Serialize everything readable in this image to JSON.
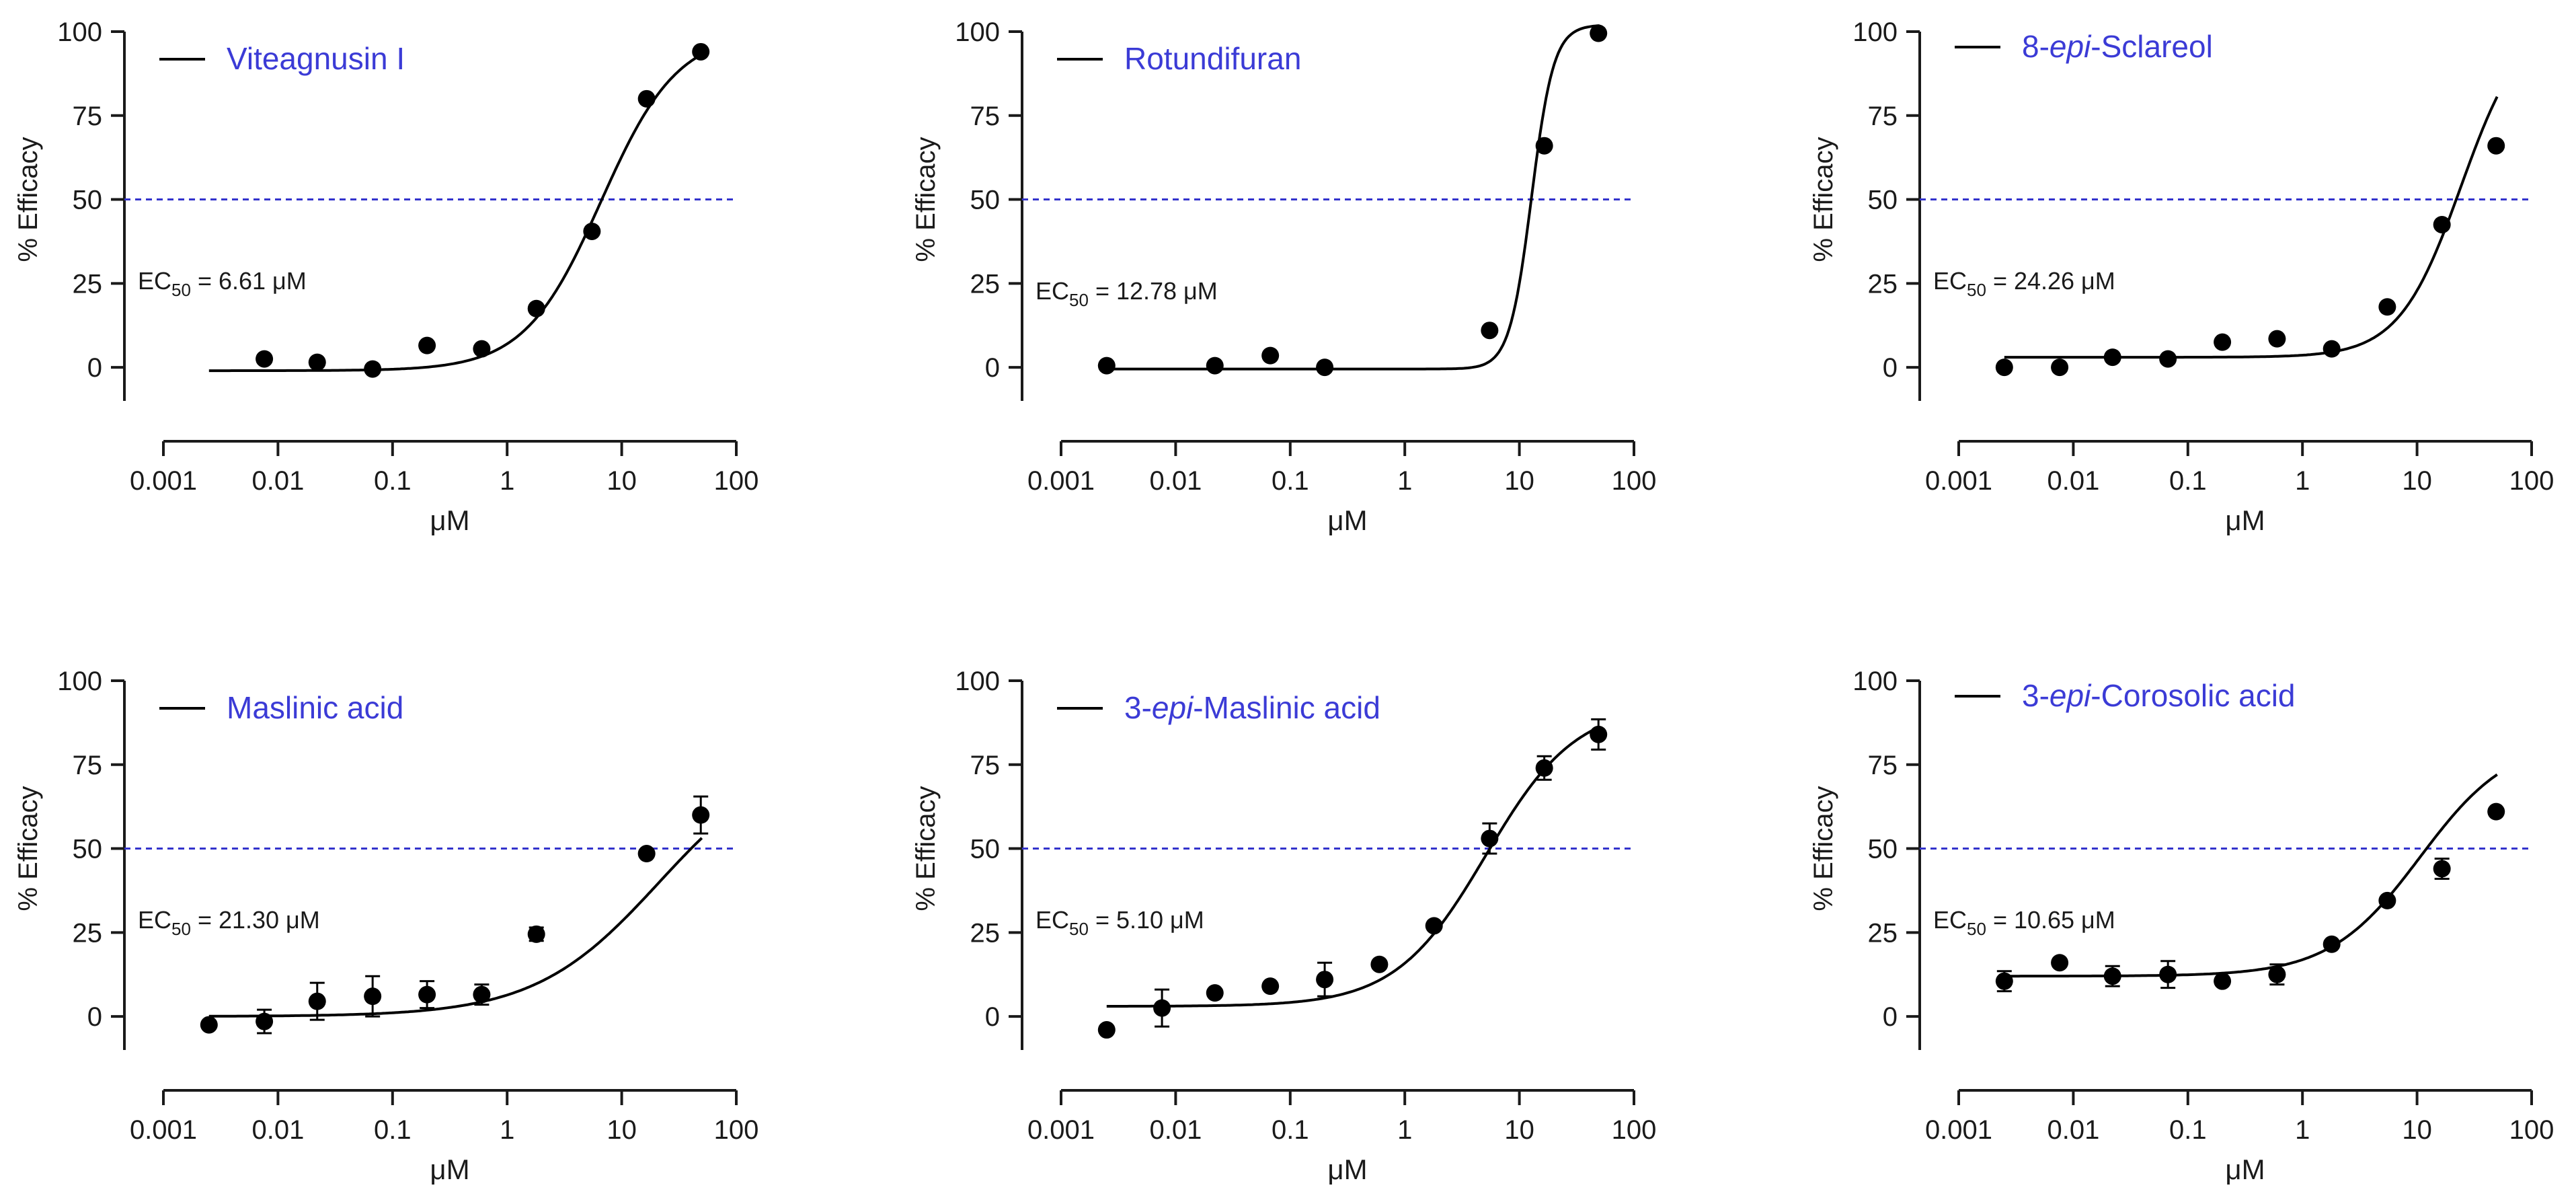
{
  "chart_data": [
    {
      "type": "scatter",
      "title": "Viteagnusin I",
      "title_parts": [
        {
          "text": "Viteagnusin I",
          "italic": false
        }
      ],
      "xlabel": "μM",
      "ylabel": "% Efficacy",
      "xscale": "log",
      "xlim": [
        0.001,
        100
      ],
      "ylim": [
        -10,
        100
      ],
      "xticks": [
        0.001,
        0.01,
        0.1,
        1,
        10,
        100
      ],
      "xtick_labels": [
        "0.001",
        "0.01",
        "0.1",
        "1",
        "10",
        "100"
      ],
      "yticks": [
        0,
        25,
        50,
        75,
        100
      ],
      "ytick_labels": [
        "0",
        "25",
        "50",
        "75",
        "100"
      ],
      "reference_line": {
        "y": 50,
        "style": "dashed",
        "color": "#3333cc"
      },
      "ec50_label": {
        "prefix": "EC",
        "sub": "50",
        "suffix": " = 6.61 μM"
      },
      "ec50": 6.61,
      "fit": {
        "bottom": -1,
        "top": 100,
        "hill": 1.3,
        "x_range": [
          0.0025,
          50
        ]
      },
      "points": {
        "x": [
          0.0076,
          0.022,
          0.067,
          0.2,
          0.6,
          1.8,
          5.5,
          16.5,
          49
        ],
        "y": [
          2.5,
          1.5,
          -0.5,
          6.5,
          5.5,
          17.5,
          40.5,
          80,
          94
        ],
        "err": [
          0,
          0,
          0,
          0,
          0,
          0,
          0,
          0,
          0
        ]
      },
      "legend": "top-left"
    },
    {
      "type": "scatter",
      "title": "Rotundifuran",
      "title_parts": [
        {
          "text": "Rotundifuran",
          "italic": false
        }
      ],
      "xlabel": "μM",
      "ylabel": "% Efficacy",
      "xscale": "log",
      "xlim": [
        0.001,
        100
      ],
      "ylim": [
        -10,
        100
      ],
      "xticks": [
        0.001,
        0.01,
        0.1,
        1,
        10,
        100
      ],
      "xtick_labels": [
        "0.001",
        "0.01",
        "0.1",
        "1",
        "10",
        "100"
      ],
      "yticks": [
        0,
        25,
        50,
        75,
        100
      ],
      "ytick_labels": [
        "0",
        "25",
        "50",
        "75",
        "100"
      ],
      "reference_line": {
        "y": 50,
        "style": "dashed",
        "color": "#3333cc"
      },
      "ec50_label": {
        "prefix": "EC",
        "sub": "50",
        "suffix": " = 12.78 μM"
      },
      "ec50": 12.78,
      "fit": {
        "bottom": -0.5,
        "top": 102,
        "hill": 4.5,
        "x_range": [
          0.0025,
          50
        ]
      },
      "points": {
        "x": [
          0.0025,
          0.022,
          0.067,
          0.2,
          5.5,
          16.5,
          49
        ],
        "y": [
          0.5,
          0.5,
          3.5,
          0,
          11,
          66,
          99.5
        ],
        "err": [
          0,
          0,
          0,
          0,
          0,
          0,
          0
        ]
      },
      "legend": "top-left"
    },
    {
      "type": "scatter",
      "title": "8-epi-Sclareol",
      "title_parts": [
        {
          "text": "8-",
          "italic": false
        },
        {
          "text": "epi",
          "italic": true
        },
        {
          "text": "-Sclareol",
          "italic": false
        }
      ],
      "xlabel": "μM",
      "ylabel": "% Efficacy",
      "xscale": "log",
      "xlim": [
        0.001,
        100
      ],
      "ylim": [
        -10,
        100
      ],
      "xticks": [
        0.001,
        0.01,
        0.1,
        1,
        10,
        100
      ],
      "xtick_labels": [
        "0.001",
        "0.01",
        "0.1",
        "1",
        "10",
        "100"
      ],
      "yticks": [
        0,
        25,
        50,
        75,
        100
      ],
      "ytick_labels": [
        "0",
        "25",
        "50",
        "75",
        "100"
      ],
      "reference_line": {
        "y": 50,
        "style": "dashed",
        "color": "#3333cc"
      },
      "ec50_label": {
        "prefix": "EC",
        "sub": "50",
        "suffix": " = 24.26 μM"
      },
      "ec50": 24.26,
      "fit": {
        "bottom": 3,
        "top": 105,
        "hill": 1.6,
        "x_range": [
          0.0025,
          50
        ]
      },
      "points": {
        "x": [
          0.0025,
          0.0076,
          0.022,
          0.067,
          0.2,
          0.6,
          1.8,
          5.5,
          16.5,
          49
        ],
        "y": [
          0,
          0,
          3,
          2.5,
          7.5,
          8.5,
          5.5,
          18,
          42.5,
          66
        ],
        "err": [
          0,
          0,
          0,
          0,
          0,
          0,
          0,
          0,
          0,
          0
        ]
      },
      "legend": "top-left"
    },
    {
      "type": "scatter",
      "title": "Maslinic acid",
      "title_parts": [
        {
          "text": "Maslinic acid",
          "italic": false
        }
      ],
      "xlabel": "μM",
      "ylabel": "% Efficacy",
      "xscale": "log",
      "xlim": [
        0.001,
        100
      ],
      "ylim": [
        -10,
        100
      ],
      "xticks": [
        0.001,
        0.01,
        0.1,
        1,
        10,
        100
      ],
      "xtick_labels": [
        "0.001",
        "0.01",
        "0.1",
        "1",
        "10",
        "100"
      ],
      "yticks": [
        0,
        25,
        50,
        75,
        100
      ],
      "ytick_labels": [
        "0",
        "25",
        "50",
        "75",
        "100"
      ],
      "reference_line": {
        "y": 50,
        "style": "dashed",
        "color": "#3333cc"
      },
      "ec50_label": {
        "prefix": "EC",
        "sub": "50",
        "suffix": " = 21.30 μM"
      },
      "ec50": 21.3,
      "fit": {
        "bottom": 0,
        "top": 80,
        "hill": 0.8,
        "x_range": [
          0.0025,
          50
        ]
      },
      "points": {
        "x": [
          0.0025,
          0.0076,
          0.022,
          0.067,
          0.2,
          0.6,
          1.8,
          16.5,
          49
        ],
        "y": [
          -2.5,
          -1.5,
          4.5,
          6,
          6.5,
          6.5,
          24.5,
          48.5,
          60
        ],
        "err": [
          0,
          3.5,
          5.5,
          6,
          4,
          3,
          2,
          0,
          5.5
        ]
      },
      "legend": "top-left"
    },
    {
      "type": "scatter",
      "title": "3-epi-Maslinic acid",
      "title_parts": [
        {
          "text": "3-",
          "italic": false
        },
        {
          "text": "epi",
          "italic": true
        },
        {
          "text": "-Maslinic acid",
          "italic": false
        }
      ],
      "xlabel": "μM",
      "ylabel": "% Efficacy",
      "xscale": "log",
      "xlim": [
        0.001,
        100
      ],
      "ylim": [
        -10,
        100
      ],
      "xticks": [
        0.001,
        0.01,
        0.1,
        1,
        10,
        100
      ],
      "xtick_labels": [
        "0.001",
        "0.01",
        "0.1",
        "1",
        "10",
        "100"
      ],
      "yticks": [
        0,
        25,
        50,
        75,
        100
      ],
      "ytick_labels": [
        "0",
        "25",
        "50",
        "75",
        "100"
      ],
      "reference_line": {
        "y": 50,
        "style": "dashed",
        "color": "#3333cc"
      },
      "ec50_label": {
        "prefix": "EC",
        "sub": "50",
        "suffix": " = 5.10 μM"
      },
      "ec50": 5.1,
      "fit": {
        "bottom": 3,
        "top": 93,
        "hill": 1.1,
        "x_range": [
          0.0025,
          50
        ]
      },
      "points": {
        "x": [
          0.0025,
          0.0076,
          0.022,
          0.067,
          0.2,
          0.6,
          1.8,
          5.5,
          16.5,
          49
        ],
        "y": [
          -4,
          2.5,
          7,
          9,
          11,
          15.5,
          27,
          53,
          74,
          84
        ],
        "err": [
          0,
          5.5,
          0,
          0,
          5,
          0,
          0,
          4.5,
          3.5,
          4.5
        ]
      },
      "legend": "top-left"
    },
    {
      "type": "scatter",
      "title": "3-epi-Corosolic acid",
      "title_parts": [
        {
          "text": "3-",
          "italic": false
        },
        {
          "text": "epi",
          "italic": true
        },
        {
          "text": "-Corosolic acid",
          "italic": false
        }
      ],
      "xlabel": "μM",
      "ylabel": "% Efficacy",
      "xscale": "log",
      "xlim": [
        0.001,
        100
      ],
      "ylim": [
        -10,
        100
      ],
      "xticks": [
        0.001,
        0.01,
        0.1,
        1,
        10,
        100
      ],
      "xtick_labels": [
        "0.001",
        "0.01",
        "0.1",
        "1",
        "10",
        "100"
      ],
      "yticks": [
        0,
        25,
        50,
        75,
        100
      ],
      "ytick_labels": [
        "0",
        "25",
        "50",
        "75",
        "100"
      ],
      "reference_line": {
        "y": 50,
        "style": "dashed",
        "color": "#3333cc"
      },
      "ec50_label": {
        "prefix": "EC",
        "sub": "50",
        "suffix": " = 10.65 μM"
      },
      "ec50": 10.65,
      "fit": {
        "bottom": 12,
        "top": 83,
        "hill": 1.1,
        "x_range": [
          0.0025,
          50
        ]
      },
      "points": {
        "x": [
          0.0025,
          0.0076,
          0.022,
          0.067,
          0.2,
          0.6,
          1.8,
          5.5,
          16.5,
          49
        ],
        "y": [
          10.5,
          16,
          12,
          12.5,
          10.5,
          12.5,
          21.5,
          34.5,
          44,
          61
        ],
        "err": [
          3,
          0,
          3,
          4,
          0,
          3,
          0,
          0,
          3,
          0
        ]
      },
      "legend": "top-left"
    }
  ],
  "colors": {
    "axis": "#1a1a1a",
    "points": "#000000",
    "fit_line": "#000000",
    "title": "#3b3bd6",
    "reference_line": "#3333cc"
  }
}
